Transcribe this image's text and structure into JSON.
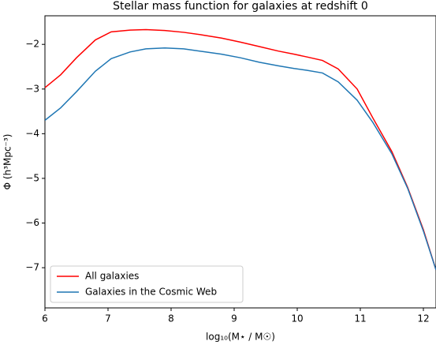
{
  "chart_data": {
    "type": "line",
    "title": "Stellar mass function for galaxies at redshift 0",
    "xlabel": "log₁₀(M⋆ / M☉)",
    "ylabel": "Φ (h³Mpc⁻³)",
    "x": [
      6.0,
      6.25,
      6.5,
      6.8,
      7.05,
      7.35,
      7.6,
      7.9,
      8.2,
      8.5,
      8.8,
      9.1,
      9.4,
      9.7,
      9.95,
      10.15,
      10.4,
      10.65,
      10.95,
      11.2,
      11.5,
      11.75,
      12.0,
      12.2
    ],
    "series": [
      {
        "name": "All galaxies",
        "color": "#ff0000",
        "values": [
          -2.97,
          -2.68,
          -2.3,
          -1.9,
          -1.72,
          -1.68,
          -1.67,
          -1.69,
          -1.73,
          -1.79,
          -1.86,
          -1.95,
          -2.05,
          -2.15,
          -2.22,
          -2.28,
          -2.36,
          -2.55,
          -3.0,
          -3.65,
          -4.4,
          -5.2,
          -6.15,
          -7.05
        ]
      },
      {
        "name": "Galaxies in the Cosmic Web",
        "color": "#1f77b4",
        "values": [
          -3.7,
          -3.42,
          -3.06,
          -2.6,
          -2.32,
          -2.17,
          -2.1,
          -2.08,
          -2.1,
          -2.16,
          -2.22,
          -2.3,
          -2.4,
          -2.48,
          -2.54,
          -2.58,
          -2.64,
          -2.84,
          -3.25,
          -3.75,
          -4.45,
          -5.22,
          -6.18,
          -7.05
        ]
      }
    ],
    "xlim": [
      6,
      12.2
    ],
    "ylim": [
      -7.9,
      -1.36
    ],
    "xticks": [
      6,
      7,
      8,
      9,
      10,
      11,
      12
    ],
    "yticks": [
      {
        "value": -2,
        "label": "−2"
      },
      {
        "value": -3,
        "label": "−3"
      },
      {
        "value": -4,
        "label": "−4"
      },
      {
        "value": -5,
        "label": "−5"
      },
      {
        "value": -6,
        "label": "−6"
      },
      {
        "value": -7,
        "label": "−7"
      }
    ],
    "legend": "lower left",
    "grid": false
  }
}
